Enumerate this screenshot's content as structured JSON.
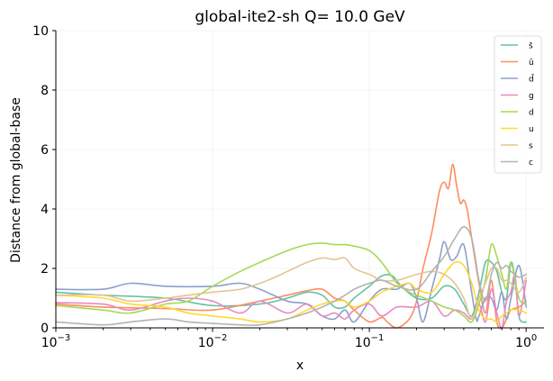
{
  "chart_data": {
    "type": "line",
    "title": "global-ite2-sh Q= 10.0 GeV",
    "xlabel": "x",
    "ylabel": "Distance from global-base",
    "xscale": "log",
    "xlim": [
      0.001,
      1.3
    ],
    "ylim": [
      0,
      10
    ],
    "x_ticks": [
      {
        "base": "10",
        "exp": "−3",
        "value": 0.001
      },
      {
        "base": "10",
        "exp": "−2",
        "value": 0.01
      },
      {
        "base": "10",
        "exp": "−1",
        "value": 0.1
      },
      {
        "base": "10",
        "exp": "0",
        "value": 1
      }
    ],
    "y_ticks": [
      {
        "label": "0",
        "value": 0
      },
      {
        "label": "2",
        "value": 2
      },
      {
        "label": "4",
        "value": 4
      },
      {
        "label": "6",
        "value": 6
      },
      {
        "label": "8",
        "value": 8
      },
      {
        "label": "10",
        "value": 10
      }
    ],
    "grid": "faint",
    "legend_position": "top-right",
    "series": [
      {
        "name": "s̄",
        "color": "#66c2a5",
        "x": [
          0.001,
          0.002,
          0.005,
          0.01,
          0.02,
          0.03,
          0.04,
          0.05,
          0.06,
          0.07,
          0.08,
          0.1,
          0.12,
          0.14,
          0.16,
          0.2,
          0.25,
          0.3,
          0.35,
          0.4,
          0.45,
          0.5,
          0.55,
          0.6,
          0.65,
          0.7,
          0.75,
          0.8,
          0.85,
          0.9,
          0.95,
          1.0
        ],
        "y": [
          1.2,
          1.1,
          1.0,
          0.75,
          0.8,
          1.0,
          1.2,
          1.1,
          0.7,
          0.7,
          1.0,
          1.4,
          1.75,
          1.75,
          1.4,
          1.0,
          1.0,
          1.4,
          1.3,
          0.8,
          0.4,
          1.2,
          2.2,
          2.2,
          1.9,
          1.2,
          1.0,
          2.2,
          1.6,
          0.4,
          0.2,
          0.2
        ]
      },
      {
        "name": "ū",
        "color": "#fc8d62",
        "x": [
          0.001,
          0.002,
          0.005,
          0.01,
          0.02,
          0.03,
          0.04,
          0.05,
          0.06,
          0.07,
          0.08,
          0.1,
          0.12,
          0.13,
          0.15,
          0.18,
          0.2,
          0.22,
          0.25,
          0.28,
          0.3,
          0.32,
          0.34,
          0.36,
          0.38,
          0.4,
          0.42,
          0.45,
          0.5,
          0.55,
          0.6,
          0.65,
          0.7,
          0.75,
          0.8,
          0.9,
          1.0
        ],
        "y": [
          0.8,
          0.7,
          0.65,
          0.6,
          0.9,
          1.1,
          1.25,
          1.3,
          1.0,
          0.9,
          0.6,
          0.2,
          0.35,
          0.2,
          0.0,
          0.3,
          0.9,
          2.0,
          3.2,
          4.6,
          4.9,
          4.7,
          5.5,
          4.8,
          4.2,
          4.3,
          4.0,
          3.0,
          1.5,
          0.5,
          1.6,
          0.2,
          0.0,
          0.3,
          0.6,
          0.7,
          0.9
        ]
      },
      {
        "name": "d̄",
        "color": "#8da0cb",
        "x": [
          0.001,
          0.002,
          0.003,
          0.005,
          0.01,
          0.015,
          0.02,
          0.03,
          0.04,
          0.05,
          0.06,
          0.07,
          0.08,
          0.1,
          0.12,
          0.15,
          0.18,
          0.2,
          0.22,
          0.25,
          0.28,
          0.3,
          0.33,
          0.36,
          0.4,
          0.44,
          0.48,
          0.5,
          0.55,
          0.6,
          0.65,
          0.7,
          0.75,
          0.8,
          0.9,
          1.0
        ],
        "y": [
          1.3,
          1.3,
          1.5,
          1.4,
          1.4,
          1.5,
          1.3,
          0.9,
          0.8,
          0.4,
          0.3,
          0.6,
          0.2,
          0.9,
          1.3,
          1.3,
          1.5,
          1.0,
          0.2,
          1.3,
          2.3,
          2.9,
          2.3,
          2.4,
          2.8,
          1.5,
          0.3,
          0.4,
          1.0,
          1.0,
          0.6,
          1.2,
          0.3,
          1.0,
          2.1,
          0.7
        ]
      },
      {
        "name": "g",
        "color": "#e78ac3",
        "x": [
          0.001,
          0.002,
          0.003,
          0.005,
          0.007,
          0.01,
          0.015,
          0.02,
          0.03,
          0.04,
          0.05,
          0.06,
          0.07,
          0.08,
          0.1,
          0.12,
          0.15,
          0.2,
          0.25,
          0.3,
          0.35,
          0.4,
          0.45,
          0.5,
          0.55,
          0.6,
          0.65,
          0.7,
          0.75,
          0.8,
          0.85,
          0.9,
          1.0
        ],
        "y": [
          0.85,
          0.8,
          0.6,
          0.9,
          1.0,
          0.9,
          0.5,
          0.9,
          0.5,
          0.8,
          0.4,
          0.5,
          0.3,
          0.6,
          0.8,
          0.4,
          0.7,
          0.7,
          0.9,
          0.4,
          0.6,
          0.5,
          0.3,
          0.8,
          0.2,
          1.3,
          0.5,
          0.0,
          0.9,
          1.2,
          1.8,
          0.4,
          1.6
        ]
      },
      {
        "name": "d",
        "color": "#a6d854",
        "x": [
          0.001,
          0.002,
          0.003,
          0.005,
          0.007,
          0.01,
          0.015,
          0.02,
          0.03,
          0.04,
          0.05,
          0.06,
          0.07,
          0.08,
          0.1,
          0.12,
          0.15,
          0.18,
          0.2,
          0.25,
          0.3,
          0.35,
          0.4,
          0.45,
          0.5,
          0.55,
          0.6,
          0.65,
          0.7,
          0.75,
          0.8,
          0.9,
          1.0
        ],
        "y": [
          0.75,
          0.6,
          0.5,
          0.8,
          0.9,
          1.4,
          1.9,
          2.2,
          2.6,
          2.8,
          2.85,
          2.8,
          2.8,
          2.75,
          2.6,
          2.2,
          1.5,
          1.2,
          1.1,
          0.9,
          0.7,
          0.6,
          0.4,
          0.2,
          0.8,
          1.6,
          2.8,
          2.4,
          1.8,
          1.3,
          2.2,
          1.0,
          0.8
        ]
      },
      {
        "name": "u",
        "color": "#ffd92f",
        "x": [
          0.001,
          0.002,
          0.003,
          0.005,
          0.007,
          0.01,
          0.015,
          0.02,
          0.03,
          0.04,
          0.05,
          0.06,
          0.07,
          0.08,
          0.1,
          0.12,
          0.15,
          0.18,
          0.2,
          0.25,
          0.3,
          0.35,
          0.4,
          0.45,
          0.5,
          0.55,
          0.6,
          0.65,
          0.7,
          0.75,
          0.8,
          0.9,
          1.0
        ],
        "y": [
          1.1,
          1.0,
          0.8,
          0.7,
          0.5,
          0.4,
          0.3,
          0.2,
          0.3,
          0.6,
          0.8,
          0.9,
          0.9,
          0.7,
          0.9,
          1.2,
          1.4,
          1.5,
          1.3,
          1.2,
          1.8,
          2.2,
          2.1,
          1.5,
          0.6,
          0.3,
          0.3,
          0.2,
          0.4,
          0.5,
          0.6,
          0.6,
          0.5
        ]
      },
      {
        "name": "s",
        "color": "#e5c494",
        "x": [
          0.001,
          0.002,
          0.003,
          0.005,
          0.007,
          0.01,
          0.015,
          0.02,
          0.025,
          0.03,
          0.04,
          0.05,
          0.06,
          0.07,
          0.08,
          0.1,
          0.12,
          0.15,
          0.2,
          0.25,
          0.3,
          0.35,
          0.4,
          0.45,
          0.5,
          0.55,
          0.6,
          0.65,
          0.7,
          0.75,
          0.8,
          0.9,
          1.0
        ],
        "y": [
          1.1,
          1.1,
          0.9,
          1.0,
          1.1,
          1.2,
          1.3,
          1.5,
          1.7,
          1.9,
          2.2,
          2.35,
          2.3,
          2.35,
          2.0,
          1.8,
          1.6,
          1.6,
          1.8,
          1.9,
          1.8,
          1.5,
          1.0,
          0.3,
          1.0,
          1.5,
          2.0,
          2.0,
          1.6,
          1.6,
          1.5,
          1.2,
          1.7
        ]
      },
      {
        "name": "c",
        "color": "#b3b3b3",
        "x": [
          0.001,
          0.002,
          0.003,
          0.005,
          0.007,
          0.01,
          0.015,
          0.02,
          0.03,
          0.04,
          0.05,
          0.06,
          0.07,
          0.08,
          0.1,
          0.12,
          0.15,
          0.2,
          0.25,
          0.3,
          0.35,
          0.4,
          0.45,
          0.5,
          0.55,
          0.6,
          0.65,
          0.7,
          0.75,
          0.8,
          0.85,
          0.9,
          1.0
        ],
        "y": [
          0.2,
          0.1,
          0.2,
          0.3,
          0.2,
          0.15,
          0.1,
          0.1,
          0.3,
          0.5,
          0.7,
          0.9,
          1.1,
          1.3,
          1.5,
          1.6,
          1.4,
          1.3,
          1.9,
          2.4,
          3.0,
          3.4,
          3.0,
          1.6,
          0.9,
          1.8,
          2.2,
          2.0,
          2.1,
          1.9,
          1.8,
          1.7,
          1.8
        ]
      }
    ]
  }
}
